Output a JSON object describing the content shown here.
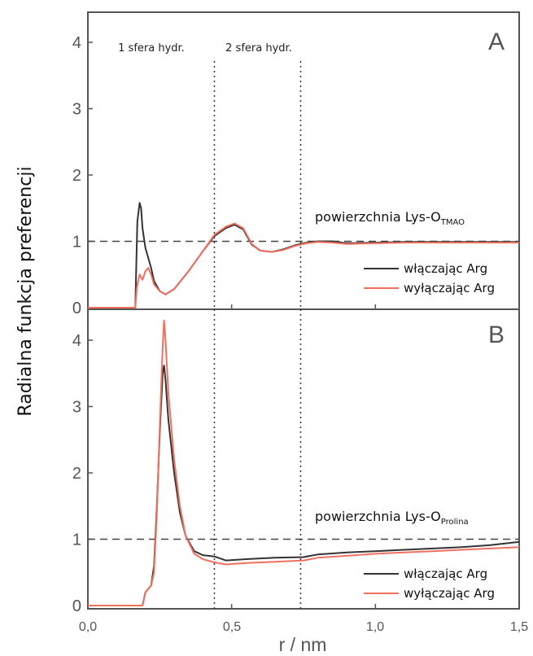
{
  "chart_data": [
    {
      "panel": "A",
      "type": "line",
      "ylabel": "Radialna funkcja preferencji",
      "xlabel": "r / nm",
      "xlim": [
        0.0,
        1.5
      ],
      "ylim": [
        0,
        4.4
      ],
      "x_ticks": [
        "0,0",
        "0,5",
        "1,0",
        "1,5"
      ],
      "y_ticks": [
        "0",
        "1",
        "2",
        "3",
        "4"
      ],
      "reference_line": 1,
      "vlines": [
        0.44,
        0.74
      ],
      "annotations": {
        "hyd1": "1 sfera hydr.",
        "hyd2": "2 sfera hydr.",
        "surface_main": "powierzchnia Lys-O",
        "surface_sub": "TMAO"
      },
      "legend": "right",
      "series": [
        {
          "name": "włączając Arg",
          "color": "#333333",
          "points": [
            [
              0,
              0
            ],
            [
              0.165,
              0
            ],
            [
              0.168,
              0.6
            ],
            [
              0.172,
              1.3
            ],
            [
              0.18,
              1.58
            ],
            [
              0.185,
              1.5
            ],
            [
              0.19,
              1.2
            ],
            [
              0.2,
              0.9
            ],
            [
              0.21,
              0.75
            ],
            [
              0.22,
              0.6
            ],
            [
              0.23,
              0.4
            ],
            [
              0.25,
              0.25
            ],
            [
              0.27,
              0.2
            ],
            [
              0.3,
              0.28
            ],
            [
              0.35,
              0.55
            ],
            [
              0.4,
              0.85
            ],
            [
              0.44,
              1.08
            ],
            [
              0.48,
              1.2
            ],
            [
              0.51,
              1.25
            ],
            [
              0.54,
              1.18
            ],
            [
              0.57,
              0.95
            ],
            [
              0.6,
              0.86
            ],
            [
              0.64,
              0.84
            ],
            [
              0.68,
              0.88
            ],
            [
              0.72,
              0.94
            ],
            [
              0.76,
              0.98
            ],
            [
              0.8,
              1.0
            ],
            [
              0.85,
              1.0
            ],
            [
              0.9,
              0.97
            ],
            [
              1.0,
              0.98
            ],
            [
              1.1,
              0.99
            ],
            [
              1.2,
              0.99
            ],
            [
              1.3,
              0.99
            ],
            [
              1.4,
              0.99
            ],
            [
              1.5,
              0.99
            ]
          ]
        },
        {
          "name": "wyłączając Arg",
          "color": "#f07060",
          "points": [
            [
              0,
              0
            ],
            [
              0.165,
              0
            ],
            [
              0.17,
              0.3
            ],
            [
              0.18,
              0.5
            ],
            [
              0.19,
              0.42
            ],
            [
              0.2,
              0.55
            ],
            [
              0.21,
              0.6
            ],
            [
              0.22,
              0.5
            ],
            [
              0.23,
              0.35
            ],
            [
              0.25,
              0.25
            ],
            [
              0.27,
              0.2
            ],
            [
              0.3,
              0.28
            ],
            [
              0.35,
              0.55
            ],
            [
              0.4,
              0.85
            ],
            [
              0.44,
              1.1
            ],
            [
              0.48,
              1.22
            ],
            [
              0.51,
              1.27
            ],
            [
              0.54,
              1.2
            ],
            [
              0.57,
              0.96
            ],
            [
              0.6,
              0.86
            ],
            [
              0.64,
              0.84
            ],
            [
              0.68,
              0.87
            ],
            [
              0.72,
              0.93
            ],
            [
              0.76,
              0.97
            ],
            [
              0.8,
              0.99
            ],
            [
              0.85,
              0.98
            ],
            [
              0.9,
              0.96
            ],
            [
              1.0,
              0.97
            ],
            [
              1.1,
              0.98
            ],
            [
              1.2,
              0.98
            ],
            [
              1.3,
              0.98
            ],
            [
              1.4,
              0.98
            ],
            [
              1.5,
              0.98
            ]
          ]
        }
      ]
    },
    {
      "panel": "B",
      "type": "line",
      "xlim": [
        0.0,
        1.5
      ],
      "ylim": [
        0,
        4.4
      ],
      "reference_line": 1,
      "vlines": [
        0.44,
        0.74
      ],
      "annotations": {
        "surface_main": "powierzchnia Lys-O",
        "surface_sub": "Prolina"
      },
      "legend": "bottom-right",
      "series": [
        {
          "name": "włączając Arg",
          "color": "#333333",
          "points": [
            [
              0,
              0
            ],
            [
              0.19,
              0
            ],
            [
              0.2,
              0.2
            ],
            [
              0.22,
              0.3
            ],
            [
              0.23,
              0.6
            ],
            [
              0.24,
              1.5
            ],
            [
              0.25,
              2.6
            ],
            [
              0.26,
              3.5
            ],
            [
              0.265,
              3.62
            ],
            [
              0.27,
              3.4
            ],
            [
              0.28,
              2.8
            ],
            [
              0.3,
              2.0
            ],
            [
              0.32,
              1.4
            ],
            [
              0.34,
              1.05
            ],
            [
              0.37,
              0.82
            ],
            [
              0.4,
              0.76
            ],
            [
              0.44,
              0.74
            ],
            [
              0.48,
              0.68
            ],
            [
              0.55,
              0.7
            ],
            [
              0.65,
              0.72
            ],
            [
              0.75,
              0.73
            ],
            [
              0.8,
              0.77
            ],
            [
              0.9,
              0.8
            ],
            [
              1.0,
              0.82
            ],
            [
              1.1,
              0.84
            ],
            [
              1.2,
              0.86
            ],
            [
              1.3,
              0.88
            ],
            [
              1.4,
              0.91
            ],
            [
              1.5,
              0.96
            ]
          ]
        },
        {
          "name": "wyłączając Arg",
          "color": "#f07060",
          "points": [
            [
              0,
              0
            ],
            [
              0.19,
              0
            ],
            [
              0.2,
              0.2
            ],
            [
              0.22,
              0.3
            ],
            [
              0.23,
              0.5
            ],
            [
              0.24,
              1.4
            ],
            [
              0.25,
              2.7
            ],
            [
              0.26,
              3.9
            ],
            [
              0.265,
              4.3
            ],
            [
              0.27,
              4.0
            ],
            [
              0.28,
              3.2
            ],
            [
              0.3,
              2.2
            ],
            [
              0.32,
              1.5
            ],
            [
              0.34,
              1.05
            ],
            [
              0.37,
              0.78
            ],
            [
              0.4,
              0.7
            ],
            [
              0.44,
              0.65
            ],
            [
              0.48,
              0.62
            ],
            [
              0.55,
              0.64
            ],
            [
              0.65,
              0.66
            ],
            [
              0.75,
              0.68
            ],
            [
              0.8,
              0.72
            ],
            [
              0.9,
              0.75
            ],
            [
              1.0,
              0.78
            ],
            [
              1.1,
              0.8
            ],
            [
              1.2,
              0.82
            ],
            [
              1.3,
              0.84
            ],
            [
              1.4,
              0.86
            ],
            [
              1.5,
              0.88
            ]
          ]
        }
      ]
    }
  ]
}
